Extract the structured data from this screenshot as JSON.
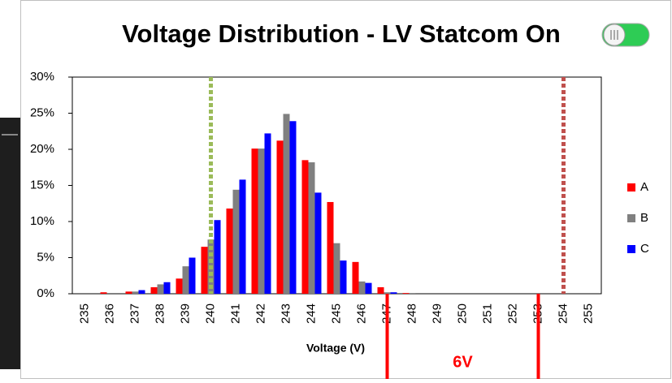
{
  "chart_data": {
    "type": "bar",
    "title": "Voltage Distribution - LV Statcom On",
    "x_label": "Voltage (V)",
    "categories": [
      235,
      236,
      237,
      238,
      239,
      240,
      241,
      242,
      243,
      244,
      245,
      246,
      247,
      248,
      249,
      250,
      251,
      252,
      253,
      254,
      255
    ],
    "series": [
      {
        "name": "A",
        "color": "#ff0000",
        "values": [
          0,
          0.2,
          0.3,
          0.9,
          2.1,
          6.5,
          11.8,
          20.1,
          21.2,
          18.5,
          12.7,
          4.4,
          0.9,
          0.1,
          0,
          0,
          0,
          0,
          0,
          0,
          0
        ]
      },
      {
        "name": "B",
        "color": "#808080",
        "values": [
          0,
          0,
          0.3,
          1.3,
          3.8,
          7.5,
          14.4,
          20.1,
          24.9,
          18.2,
          7,
          1.7,
          0.2,
          0.1,
          0,
          0,
          0,
          0,
          0,
          0,
          0
        ]
      },
      {
        "name": "C",
        "color": "#0000ff",
        "values": [
          0,
          0,
          0.5,
          1.6,
          5,
          10.2,
          15.8,
          22.2,
          23.9,
          14,
          4.6,
          1.5,
          0.2,
          0,
          0,
          0,
          0,
          0,
          0,
          0,
          0
        ]
      }
    ],
    "ylim": [
      0,
      30
    ],
    "yticks": [
      {
        "value": 0,
        "label": "0%"
      },
      {
        "value": 5,
        "label": "5%"
      },
      {
        "value": 10,
        "label": "10%"
      },
      {
        "value": 15,
        "label": "15%"
      },
      {
        "value": 20,
        "label": "20%"
      },
      {
        "value": 25,
        "label": "25%"
      },
      {
        "value": 30,
        "label": "30%"
      }
    ],
    "reference_lines": [
      {
        "x": 240,
        "color": "#9bbb59"
      },
      {
        "x": 254,
        "color": "#c0504d"
      }
    ],
    "annotation": {
      "text": "6V",
      "from": 247,
      "to": 253,
      "color": "#ff0000"
    },
    "legend": "right"
  }
}
